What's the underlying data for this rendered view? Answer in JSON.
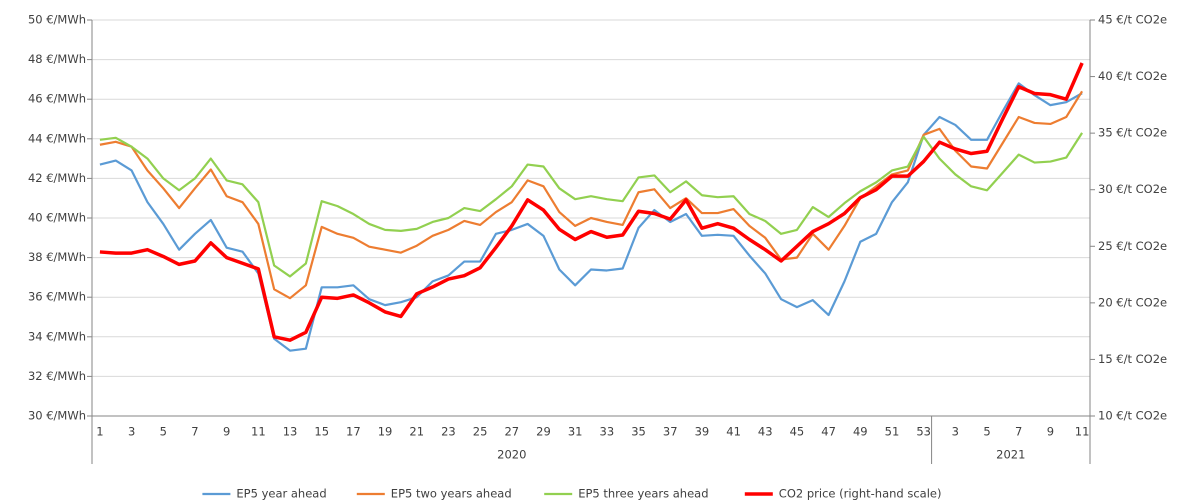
{
  "chart_data": {
    "type": "line",
    "categories": [
      1,
      null,
      3,
      null,
      5,
      null,
      7,
      null,
      9,
      null,
      11,
      null,
      13,
      null,
      15,
      null,
      17,
      null,
      19,
      null,
      21,
      null,
      23,
      null,
      25,
      null,
      27,
      null,
      29,
      null,
      31,
      null,
      33,
      null,
      35,
      null,
      37,
      null,
      39,
      null,
      41,
      null,
      43,
      null,
      45,
      null,
      47,
      null,
      49,
      null,
      51,
      null,
      53,
      null,
      3,
      null,
      5,
      null,
      7,
      null,
      9,
      null,
      11
    ],
    "groups": [
      {
        "name": "2020",
        "count": 53
      },
      {
        "name": "2021",
        "count": 10
      }
    ],
    "ylim": [
      30,
      50
    ],
    "yticks": [
      {
        "value": 30,
        "label": "30 €/MWh"
      },
      {
        "value": 32,
        "label": "32 €/MWh"
      },
      {
        "value": 34,
        "label": "34 €/MWh"
      },
      {
        "value": 36,
        "label": "36 €/MWh"
      },
      {
        "value": 38,
        "label": "38 €/MWh"
      },
      {
        "value": 40,
        "label": "40 €/MWh"
      },
      {
        "value": 42,
        "label": "42 €/MWh"
      },
      {
        "value": 44,
        "label": "44 €/MWh"
      },
      {
        "value": 46,
        "label": "46 €/MWh"
      },
      {
        "value": 48,
        "label": "48 €/MWh"
      },
      {
        "value": 50,
        "label": "50 €/MWh"
      }
    ],
    "y2lim": [
      10,
      45
    ],
    "y2ticks": [
      {
        "value": 10,
        "label": "10 €/t CO2e"
      },
      {
        "value": 15,
        "label": "15 €/t CO2e"
      },
      {
        "value": 20,
        "label": "20 €/t CO2e"
      },
      {
        "value": 25,
        "label": "25 €/t CO2e"
      },
      {
        "value": 30,
        "label": "30 €/t CO2e"
      },
      {
        "value": 35,
        "label": "35 €/t CO2e"
      },
      {
        "value": 40,
        "label": "40 €/t CO2e"
      },
      {
        "value": 45,
        "label": "45 €/t CO2e"
      }
    ],
    "grid": true,
    "legend": "bottom",
    "series": [
      {
        "name": "EP5 year ahead",
        "color": "#5b9bd5",
        "values": [
          42.7,
          42.9,
          42.4,
          40.8,
          39.7,
          38.4,
          39.2,
          39.9,
          38.5,
          38.3,
          37.2,
          33.9,
          33.3,
          33.4,
          36.5,
          36.5,
          36.6,
          35.9,
          35.6,
          35.75,
          36.0,
          36.8,
          37.1,
          37.8,
          37.8,
          39.2,
          39.4,
          39.7,
          39.1,
          37.4,
          36.6,
          37.4,
          37.35,
          37.45,
          39.5,
          40.4,
          39.8,
          40.2,
          39.1,
          39.15,
          39.1,
          38.1,
          37.2,
          35.9,
          35.5,
          35.85,
          35.1,
          36.8,
          38.8,
          39.2,
          40.8,
          41.8,
          44.2,
          45.1,
          44.7,
          43.95,
          43.95,
          45.4,
          46.8,
          46.2,
          45.7,
          45.85,
          46.3
        ]
      },
      {
        "name": "EP5 two years ahead",
        "color": "#ed7d31",
        "values": [
          43.7,
          43.85,
          43.6,
          42.4,
          41.5,
          40.5,
          41.5,
          42.45,
          41.1,
          40.8,
          39.7,
          36.4,
          35.95,
          36.6,
          39.55,
          39.2,
          39.0,
          38.55,
          38.4,
          38.25,
          38.6,
          39.1,
          39.4,
          39.85,
          39.65,
          40.3,
          40.8,
          41.9,
          41.6,
          40.3,
          39.6,
          40.0,
          39.8,
          39.65,
          41.3,
          41.45,
          40.5,
          41.0,
          40.25,
          40.25,
          40.45,
          39.6,
          39.0,
          37.9,
          38.0,
          39.2,
          38.4,
          39.6,
          41.0,
          41.6,
          42.2,
          42.4,
          44.2,
          44.5,
          43.4,
          42.6,
          42.5,
          43.8,
          45.1,
          44.8,
          44.75,
          45.1,
          46.4
        ]
      },
      {
        "name": "EP5 three years ahead",
        "color": "#92d050",
        "values": [
          43.95,
          44.05,
          43.6,
          43.0,
          42.0,
          41.4,
          42.0,
          43.0,
          41.9,
          41.7,
          40.8,
          37.6,
          37.05,
          37.7,
          40.85,
          40.6,
          40.2,
          39.7,
          39.4,
          39.35,
          39.45,
          39.8,
          40.0,
          40.5,
          40.35,
          40.95,
          41.6,
          42.7,
          42.6,
          41.5,
          40.95,
          41.1,
          40.95,
          40.85,
          42.05,
          42.15,
          41.3,
          41.85,
          41.15,
          41.05,
          41.1,
          40.2,
          39.85,
          39.2,
          39.4,
          40.55,
          40.05,
          40.75,
          41.35,
          41.8,
          42.4,
          42.6,
          44.1,
          43.0,
          42.2,
          41.6,
          41.4,
          42.3,
          43.2,
          42.8,
          42.85,
          43.05,
          44.3
        ]
      },
      {
        "name": "CO2 price (right-hand scale)",
        "color": "#ff0000",
        "axis": "y2",
        "values": [
          24.5,
          24.4,
          24.4,
          24.7,
          24.1,
          23.4,
          23.7,
          25.3,
          24.0,
          23.5,
          23.0,
          17.0,
          16.7,
          17.4,
          20.5,
          20.4,
          20.7,
          20.0,
          19.2,
          18.8,
          20.8,
          21.4,
          22.1,
          22.4,
          23.1,
          24.9,
          26.8,
          29.1,
          28.2,
          26.5,
          25.6,
          26.3,
          25.8,
          26.0,
          28.1,
          27.9,
          27.4,
          29.1,
          26.6,
          27.0,
          26.6,
          25.6,
          24.7,
          23.7,
          25.0,
          26.3,
          27.0,
          27.9,
          29.3,
          30.0,
          31.2,
          31.2,
          32.5,
          34.2,
          33.6,
          33.2,
          33.4,
          36.3,
          39.1,
          38.5,
          38.4,
          38.0,
          41.2
        ]
      }
    ]
  }
}
